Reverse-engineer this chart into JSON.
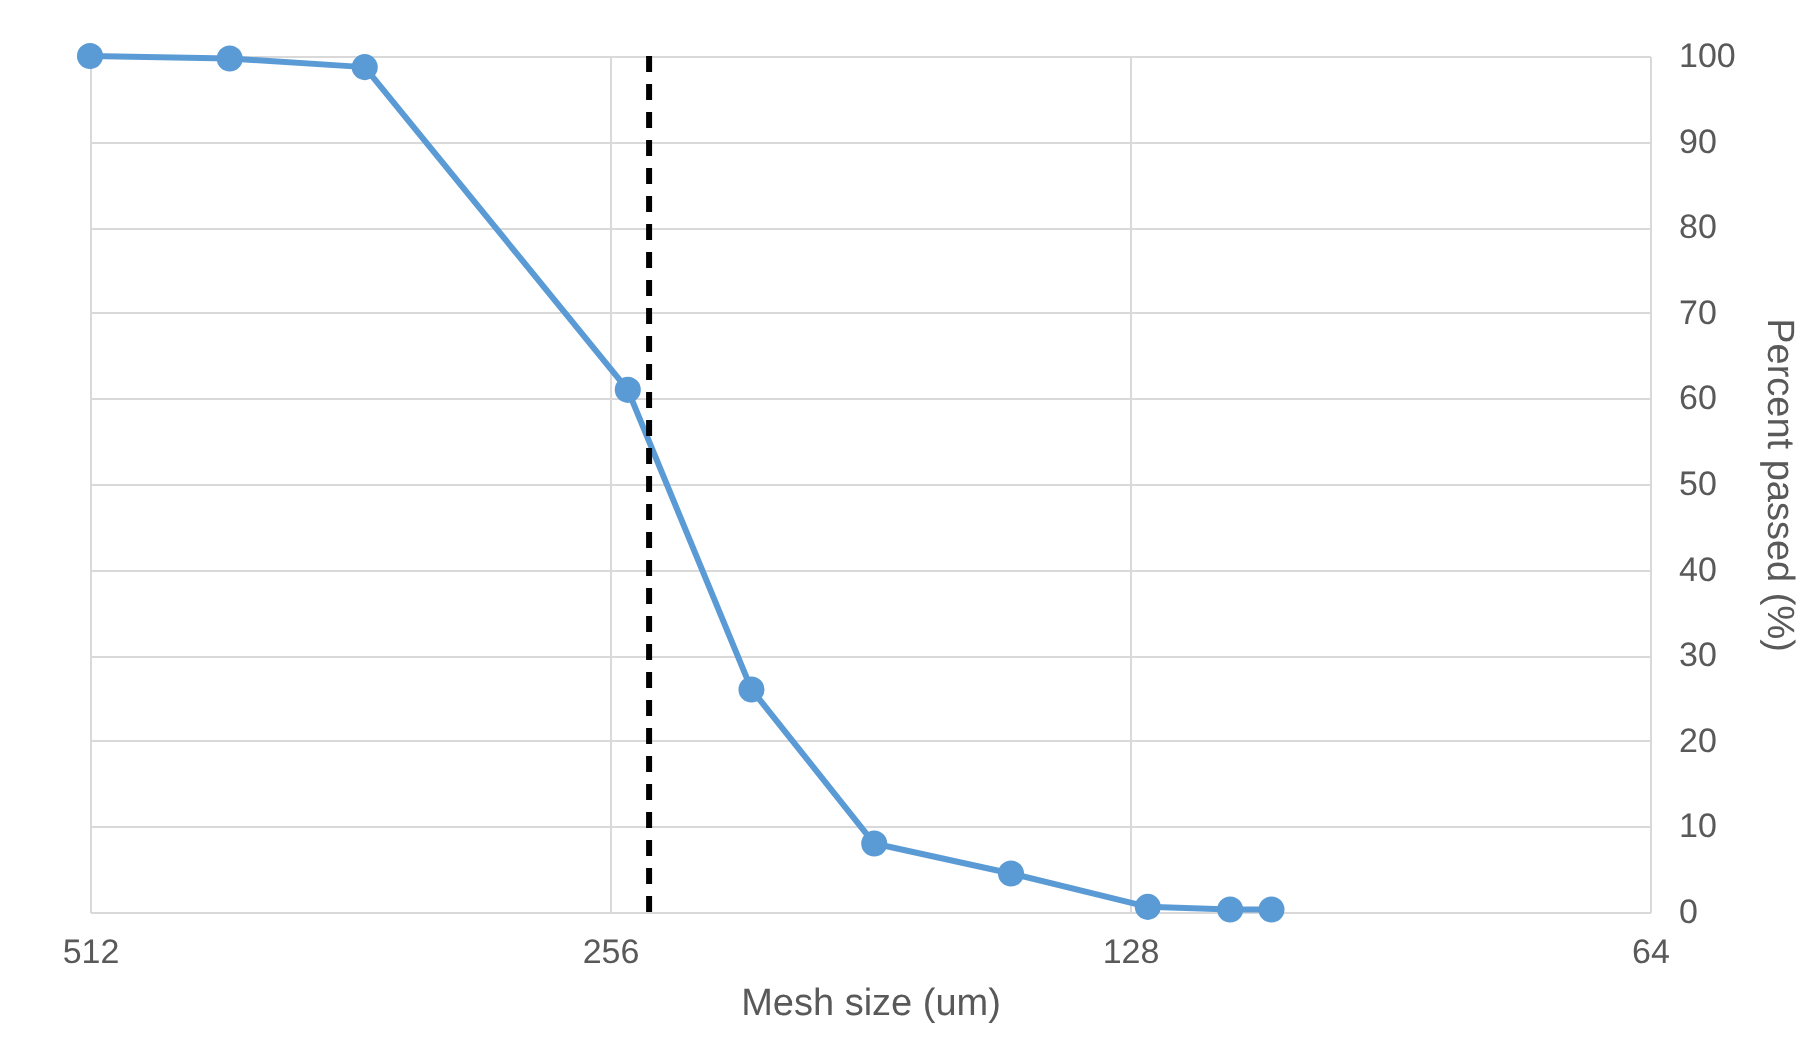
{
  "chart_data": {
    "type": "line",
    "xlabel": "Mesh size (um)",
    "ylabel": "Percent passed (%)",
    "x": [
      512,
      425,
      355,
      250,
      212,
      180,
      150,
      125,
      112,
      106
    ],
    "series": [
      {
        "color": "#5b9bd5",
        "values": [
          100,
          99.7,
          98.7,
          61,
          26,
          8,
          4.5,
          0.6,
          0.3,
          0.3
        ]
      }
    ],
    "xlim": [
      512,
      64
    ],
    "xticks": [
      512,
      256,
      128,
      64
    ],
    "log": "x",
    "ylim": [
      0,
      100
    ],
    "yticks": [
      0,
      10,
      20,
      30,
      40,
      50,
      60,
      70,
      80,
      90,
      100
    ],
    "ref_lines": [
      {
        "axis": "x",
        "value": 243,
        "color": "#000000",
        "line_style": "dashed"
      }
    ],
    "grid": true,
    "marker": "circle",
    "line_style": "solid"
  }
}
